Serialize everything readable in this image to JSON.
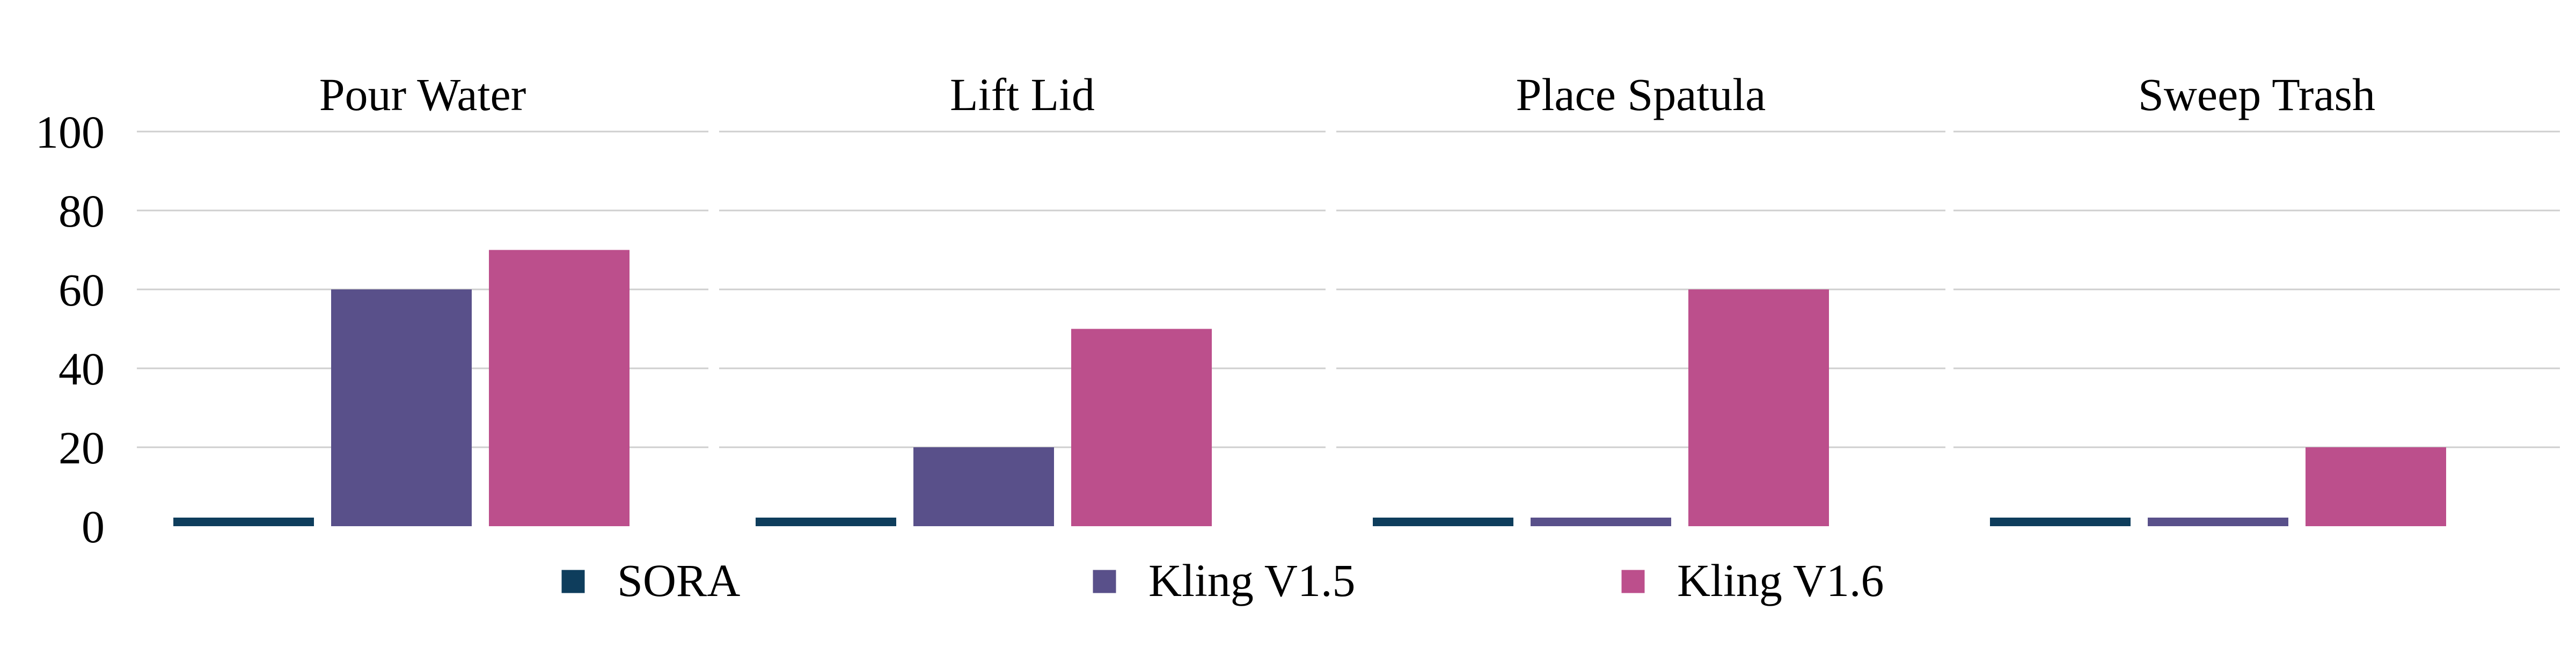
{
  "chart_data": {
    "type": "bar",
    "panels": [
      {
        "title": "Pour Water"
      },
      {
        "title": "Lift Lid"
      },
      {
        "title": "Place Spatula"
      },
      {
        "title": "Sweep Trash"
      }
    ],
    "categories": [
      "Pour Water",
      "Lift Lid",
      "Place Spatula",
      "Sweep Trash"
    ],
    "series": [
      {
        "name": "SORA",
        "color": "#0e3d5c",
        "values": [
          0,
          0,
          0,
          0
        ]
      },
      {
        "name": "Kling V1.5",
        "color": "#59508a",
        "values": [
          60,
          20,
          0,
          0
        ]
      },
      {
        "name": "Kling V1.6",
        "color": "#bc4f8c",
        "values": [
          70,
          50,
          60,
          20
        ]
      }
    ],
    "ylim": [
      0,
      100
    ],
    "yticks": [
      0,
      20,
      40,
      60,
      80,
      100
    ],
    "grid": true,
    "legend_position": "bottom-center"
  }
}
